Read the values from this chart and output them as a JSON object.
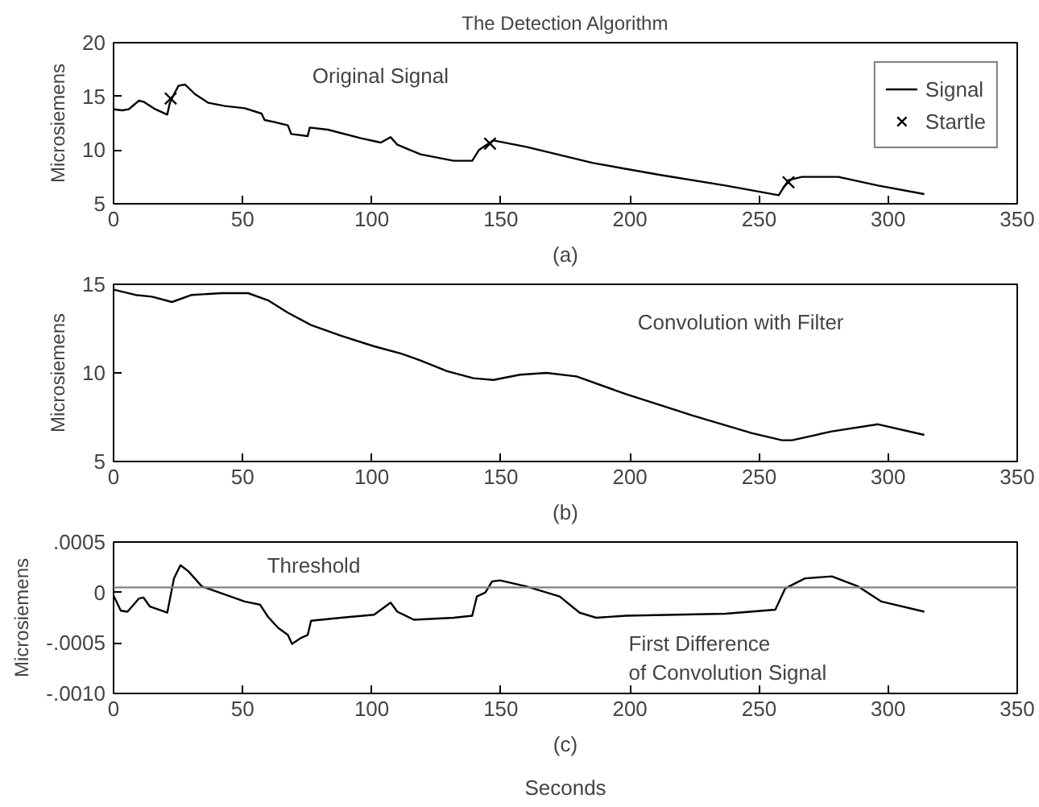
{
  "chart_data": [
    {
      "type": "line",
      "title": "The Detection Algorithm",
      "ylabel": "Microsiemens",
      "xlim": [
        0,
        350
      ],
      "xticks": [
        0,
        50,
        100,
        150,
        200,
        250,
        300,
        350
      ],
      "ylim": [
        5,
        20
      ],
      "yticks": [
        5,
        10,
        15,
        20
      ],
      "grid": false,
      "legend": "top right",
      "annotations": [
        "Original Signal",
        "(a)"
      ],
      "series": [
        {
          "name": "Signal",
          "color": "#000000",
          "marker": "none",
          "line_style": "solid",
          "x": [
            0,
            3.3,
            5.9,
            9.8,
            11.6,
            16.2,
            20.8,
            21.8,
            23.4,
            25.2,
            27.7,
            31.6,
            36.7,
            43.1,
            50.8,
            57.3,
            58.5,
            62.4,
            67.5,
            68.8,
            75.2,
            76,
            83,
            95.8,
            103.5,
            107.3,
            109.9,
            118.9,
            131.7,
            138.9,
            141.5,
            144.5,
            147.1,
            159.9,
            185.7,
            211.3,
            237,
            257.6,
            261.4,
            266.6,
            280.7,
            296.1,
            314
          ],
          "values": [
            13.8,
            13.7,
            13.8,
            14.6,
            14.5,
            13.8,
            13.3,
            14.4,
            15.2,
            16.0,
            16.1,
            15.2,
            14.4,
            14.1,
            13.9,
            13.4,
            12.8,
            12.6,
            12.3,
            11.5,
            11.3,
            12.1,
            11.9,
            11.1,
            10.7,
            11.2,
            10.5,
            9.6,
            9.0,
            9.0,
            10.0,
            10.5,
            10.9,
            10.3,
            8.8,
            7.7,
            6.7,
            5.8,
            7.2,
            7.5,
            7.5,
            6.7,
            5.9
          ]
        },
        {
          "name": "Startle",
          "type": "scatter",
          "color": "#000000",
          "marker": "cross",
          "x": [
            22.1,
            145.8,
            261.4
          ],
          "values": [
            14.8,
            10.6,
            7.0
          ]
        }
      ]
    },
    {
      "type": "line",
      "ylabel": "Microsiemens",
      "xlim": [
        0,
        350
      ],
      "xticks": [
        0,
        50,
        100,
        150,
        200,
        250,
        300,
        350
      ],
      "ylim": [
        5,
        15
      ],
      "yticks": [
        5,
        10,
        15
      ],
      "grid": false,
      "annotations": [
        "Convolution with Filter",
        "(b)"
      ],
      "series": [
        {
          "color": "#000000",
          "marker": "none",
          "line_style": "solid",
          "x": [
            0,
            8.5,
            14.9,
            22.6,
            30.3,
            41.9,
            52.1,
            59.8,
            67.5,
            76.5,
            88.1,
            100.9,
            111.2,
            118.9,
            129.2,
            139.4,
            147.1,
            157.4,
            167.7,
            179.3,
            198.5,
            224.2,
            247.3,
            258.9,
            262.8,
            278.2,
            296.1,
            314
          ],
          "values": [
            14.7,
            14.4,
            14.3,
            14.0,
            14.4,
            14.5,
            14.5,
            14.1,
            13.4,
            12.7,
            12.1,
            11.5,
            11.1,
            10.7,
            10.1,
            9.7,
            9.6,
            9.9,
            10.0,
            9.8,
            8.8,
            7.6,
            6.6,
            6.2,
            6.2,
            6.7,
            7.1,
            6.5
          ]
        }
      ]
    },
    {
      "type": "line",
      "ylabel": "Microsiemens",
      "xlabel": "Seconds",
      "xlim": [
        0,
        350
      ],
      "xticks": [
        0,
        50,
        100,
        150,
        200,
        250,
        300,
        350
      ],
      "ylim": [
        -0.001,
        0.0005
      ],
      "yticks": [
        {
          "value": -0.001,
          "label": "-.0010"
        },
        {
          "value": -0.0005,
          "label": "-.0005"
        },
        {
          "value": 0,
          "label": "0"
        },
        {
          "value": 0.0005,
          "label": ".0005"
        }
      ],
      "grid": false,
      "annotations": [
        "First Difference\nof Convolution Signal",
        "(c)"
      ],
      "ref_lines": [
        {
          "axis": "y",
          "value": 5e-05,
          "label": "Threshold",
          "color": "#808080",
          "line_style": "solid"
        }
      ],
      "series": [
        {
          "color": "#000000",
          "marker": "none",
          "line_style": "solid",
          "x": [
            0,
            2.8,
            5.4,
            9.8,
            11.6,
            14.1,
            20.8,
            23.4,
            25.9,
            29,
            34.2,
            43.1,
            50.8,
            56.7,
            59.8,
            63.7,
            67.5,
            69.1,
            72.6,
            75.2,
            76.5,
            88.1,
            100.9,
            107.3,
            109.9,
            116.3,
            131.7,
            138.9,
            140.7,
            144,
            146.6,
            149.7,
            159.9,
            172.8,
            180.5,
            186.9,
            198.5,
            237,
            256.3,
            260.1,
            267.8,
            278.2,
            288.4,
            297.4,
            314
          ],
          "values": [
            -3e-05,
            -0.00018,
            -0.00019,
            -6e-05,
            -5e-05,
            -0.00014,
            -0.0002,
            0.00014,
            0.00027,
            0.00021,
            6e-05,
            -2e-05,
            -9e-05,
            -0.00012,
            -0.00024,
            -0.00035,
            -0.00042,
            -0.00051,
            -0.00045,
            -0.00042,
            -0.00028,
            -0.00025,
            -0.00022,
            -0.0001,
            -0.00019,
            -0.00027,
            -0.00025,
            -0.00023,
            -4e-05,
            0,
            0.00011,
            0.00012,
            6e-05,
            -4e-05,
            -0.0002,
            -0.00025,
            -0.00023,
            -0.00021,
            -0.00017,
            4e-05,
            0.00014,
            0.00016,
            6e-05,
            -9e-05,
            -0.00019
          ]
        }
      ]
    }
  ]
}
